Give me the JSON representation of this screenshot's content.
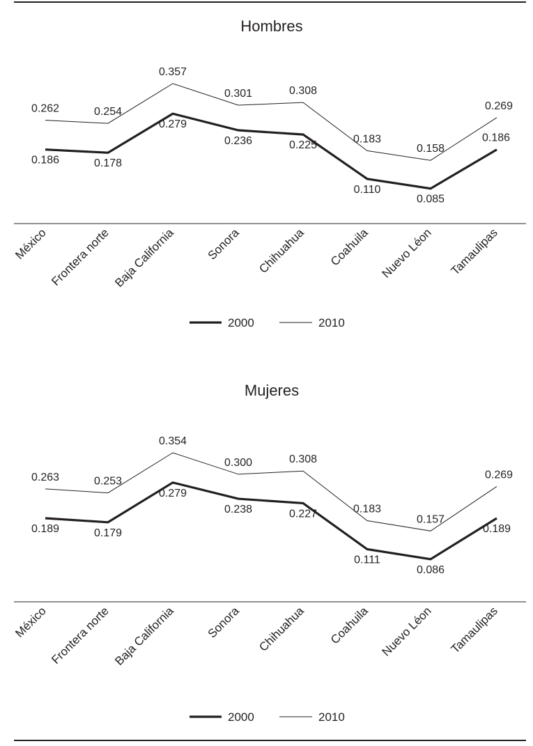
{
  "chart_data": [
    {
      "type": "line",
      "title": "Hombres",
      "categories": [
        "México",
        "Frontera norte",
        "Baja California",
        "Sonora",
        "Chihuahua",
        "Coahuila",
        "Nuevo Léon",
        "Tamaulipas"
      ],
      "series": [
        {
          "name": "2000",
          "values": [
            0.186,
            0.178,
            0.279,
            0.236,
            0.225,
            0.11,
            0.085,
            0.186
          ],
          "labels": [
            "0.186",
            "0.178",
            "0.279",
            "0.236",
            "0.225",
            "0.110",
            "0.085",
            "0.186"
          ],
          "style": "thick"
        },
        {
          "name": "2010",
          "values": [
            0.262,
            0.254,
            0.357,
            0.301,
            0.308,
            0.183,
            0.158,
            0.269
          ],
          "labels": [
            "0.262",
            "0.254",
            "0.357",
            "0.301",
            "0.308",
            "0.183",
            "0.158",
            "0.269"
          ],
          "style": "thin"
        }
      ],
      "legend": "bottom-center",
      "grid": false
    },
    {
      "type": "line",
      "title": "Mujeres",
      "categories": [
        "México",
        "Frontera norte",
        "Baja California",
        "Sonora",
        "Chihuahua",
        "Coahuila",
        "Nuevo Léon",
        "Tamaulipas"
      ],
      "series": [
        {
          "name": "2000",
          "values": [
            0.189,
            0.179,
            0.279,
            0.238,
            0.227,
            0.111,
            0.086,
            0.189
          ],
          "labels": [
            "0.189",
            "0.179",
            "0.279",
            "0.238",
            "0.227",
            "0.111",
            "0.086",
            "0.189"
          ],
          "style": "thick"
        },
        {
          "name": "2010",
          "values": [
            0.263,
            0.253,
            0.354,
            0.3,
            0.308,
            0.183,
            0.157,
            0.269
          ],
          "labels": [
            "0.263",
            "0.253",
            "0.354",
            "0.300",
            "0.308",
            "0.183",
            "0.157",
            "0.269"
          ],
          "style": "thin"
        }
      ],
      "legend": "bottom-center",
      "grid": false
    }
  ],
  "colors": {
    "line": "#231f20",
    "rule": "#231f20",
    "background": "#ffffff"
  }
}
